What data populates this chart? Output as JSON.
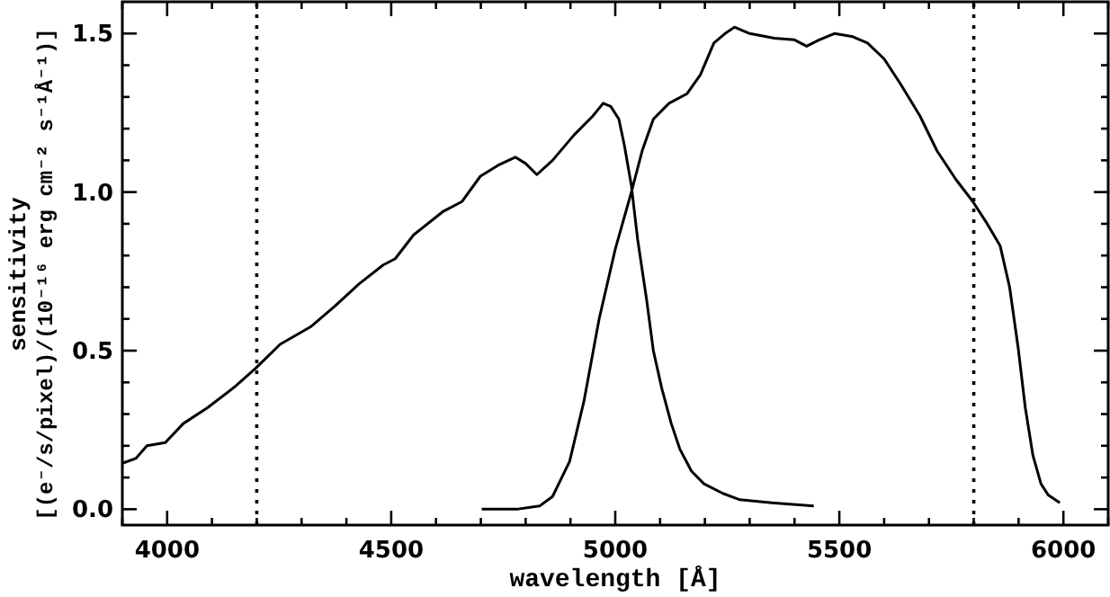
{
  "chart_data": {
    "type": "line",
    "xlabel": "wavelength [Å]",
    "ylabel": "sensitivity\n[(e⁻/s/pixel)/(10⁻¹⁶ erg cm⁻² s⁻¹Å⁻¹)]",
    "xlim": [
      3900,
      6100
    ],
    "ylim": [
      -0.05,
      1.6
    ],
    "xticks": [
      {
        "value": 3900,
        "label": null
      },
      4000,
      {
        "value": 4100,
        "label": null
      },
      {
        "value": 4200,
        "label": null
      },
      {
        "value": 4300,
        "label": null
      },
      {
        "value": 4400,
        "label": null
      },
      4500,
      {
        "value": 4600,
        "label": null
      },
      {
        "value": 4700,
        "label": null
      },
      {
        "value": 4800,
        "label": null
      },
      {
        "value": 4900,
        "label": null
      },
      5000,
      {
        "value": 5100,
        "label": null
      },
      {
        "value": 5200,
        "label": null
      },
      {
        "value": 5300,
        "label": null
      },
      {
        "value": 5400,
        "label": null
      },
      5500,
      {
        "value": 5600,
        "label": null
      },
      {
        "value": 5700,
        "label": null
      },
      {
        "value": 5800,
        "label": null
      },
      {
        "value": 5900,
        "label": null
      },
      6000,
      {
        "value": 6100,
        "label": null
      }
    ],
    "yticks": [
      {
        "value": 0,
        "label": "0.0"
      },
      {
        "value": 0.1,
        "label": null
      },
      {
        "value": 0.2,
        "label": null
      },
      {
        "value": 0.3,
        "label": null
      },
      {
        "value": 0.4,
        "label": null
      },
      0.5,
      {
        "value": 0.6,
        "label": null
      },
      {
        "value": 0.7,
        "label": null
      },
      {
        "value": 0.8,
        "label": null
      },
      {
        "value": 0.9,
        "label": null
      },
      {
        "value": 1,
        "label": "1.0"
      },
      {
        "value": 1.1,
        "label": null
      },
      {
        "value": 1.2,
        "label": null
      },
      {
        "value": 1.3,
        "label": null
      },
      {
        "value": 1.4,
        "label": null
      },
      1.5
    ],
    "grid": false,
    "marker": "none",
    "line_style": "solid",
    "ref_lines": [
      {
        "axis": "x",
        "value": 4200,
        "color": "#000000",
        "line_style": "dotted"
      },
      {
        "axis": "x",
        "value": 5800,
        "color": "#000000",
        "line_style": "dotted"
      }
    ],
    "series": [
      {
        "color": "#000000",
        "x": [
          3900,
          3930,
          3955,
          3996,
          4036,
          4090,
          4150,
          4198,
          4252,
          4320,
          4374,
          4428,
          4482,
          4509,
          4550,
          4617,
          4658,
          4699,
          4739,
          4777,
          4800,
          4825,
          4860,
          4908,
          4950,
          4973,
          4990,
          5008,
          5020,
          5036,
          5050,
          5070,
          5085,
          5104,
          5125,
          5144,
          5170,
          5198,
          5240,
          5278,
          5350,
          5443
        ],
        "values": [
          0.145,
          0.16,
          0.2,
          0.21,
          0.27,
          0.32,
          0.385,
          0.445,
          0.52,
          0.575,
          0.64,
          0.71,
          0.77,
          0.79,
          0.865,
          0.94,
          0.97,
          1.05,
          1.085,
          1.11,
          1.09,
          1.055,
          1.1,
          1.18,
          1.24,
          1.28,
          1.27,
          1.23,
          1.15,
          1.02,
          0.85,
          0.66,
          0.5,
          0.38,
          0.27,
          0.19,
          0.12,
          0.08,
          0.05,
          0.03,
          0.02,
          0.01
        ]
      },
      {
        "color": "#000000",
        "x": [
          4702,
          4780,
          4831,
          4860,
          4898,
          4930,
          4964,
          5000,
          5036,
          5060,
          5085,
          5120,
          5160,
          5190,
          5220,
          5245,
          5266,
          5300,
          5355,
          5400,
          5427,
          5455,
          5489,
          5530,
          5563,
          5600,
          5637,
          5680,
          5718,
          5760,
          5798,
          5830,
          5859,
          5880,
          5899,
          5915,
          5932,
          5950,
          5966,
          5992
        ],
        "values": [
          0,
          0,
          0.01,
          0.04,
          0.15,
          0.34,
          0.6,
          0.82,
          1.0,
          1.13,
          1.23,
          1.28,
          1.31,
          1.37,
          1.47,
          1.5,
          1.52,
          1.5,
          1.485,
          1.48,
          1.46,
          1.48,
          1.5,
          1.49,
          1.47,
          1.42,
          1.34,
          1.24,
          1.13,
          1.04,
          0.97,
          0.9,
          0.83,
          0.7,
          0.51,
          0.32,
          0.17,
          0.08,
          0.045,
          0.02
        ]
      }
    ]
  }
}
